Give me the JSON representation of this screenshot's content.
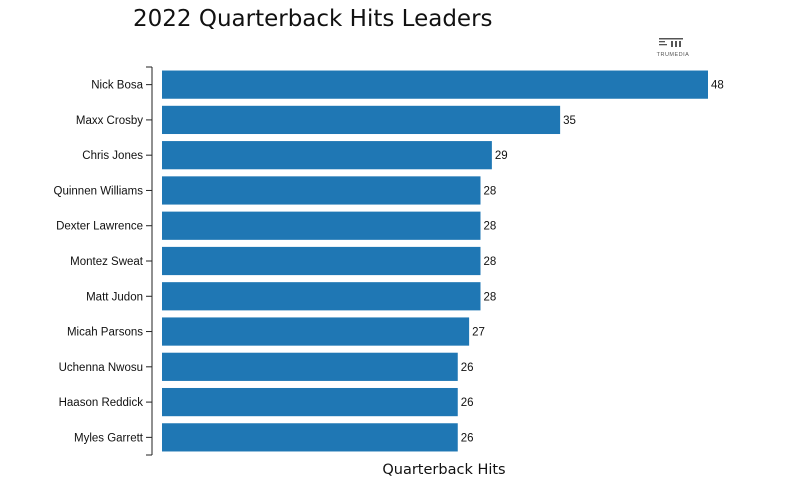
{
  "chart_data": {
    "type": "bar",
    "orientation": "horizontal",
    "title": "2022 Quarterback Hits Leaders",
    "xlabel": "Quarterback Hits",
    "ylabel": "",
    "categories": [
      "Nick Bosa",
      "Maxx Crosby",
      "Chris Jones",
      "Quinnen Williams",
      "Dexter Lawrence",
      "Montez Sweat",
      "Matt Judon",
      "Micah Parsons",
      "Uchenna Nwosu",
      "Haason Reddick",
      "Myles Garrett"
    ],
    "values": [
      48,
      35,
      29,
      28,
      28,
      28,
      28,
      27,
      26,
      26,
      26
    ],
    "xlim": [
      0,
      48
    ],
    "grid": false,
    "bar_color": "#1f77b4",
    "data_labels": true
  },
  "branding": {
    "logo_text": "TRUMEDIA",
    "logo_icon": "trumedia-logo-icon"
  }
}
